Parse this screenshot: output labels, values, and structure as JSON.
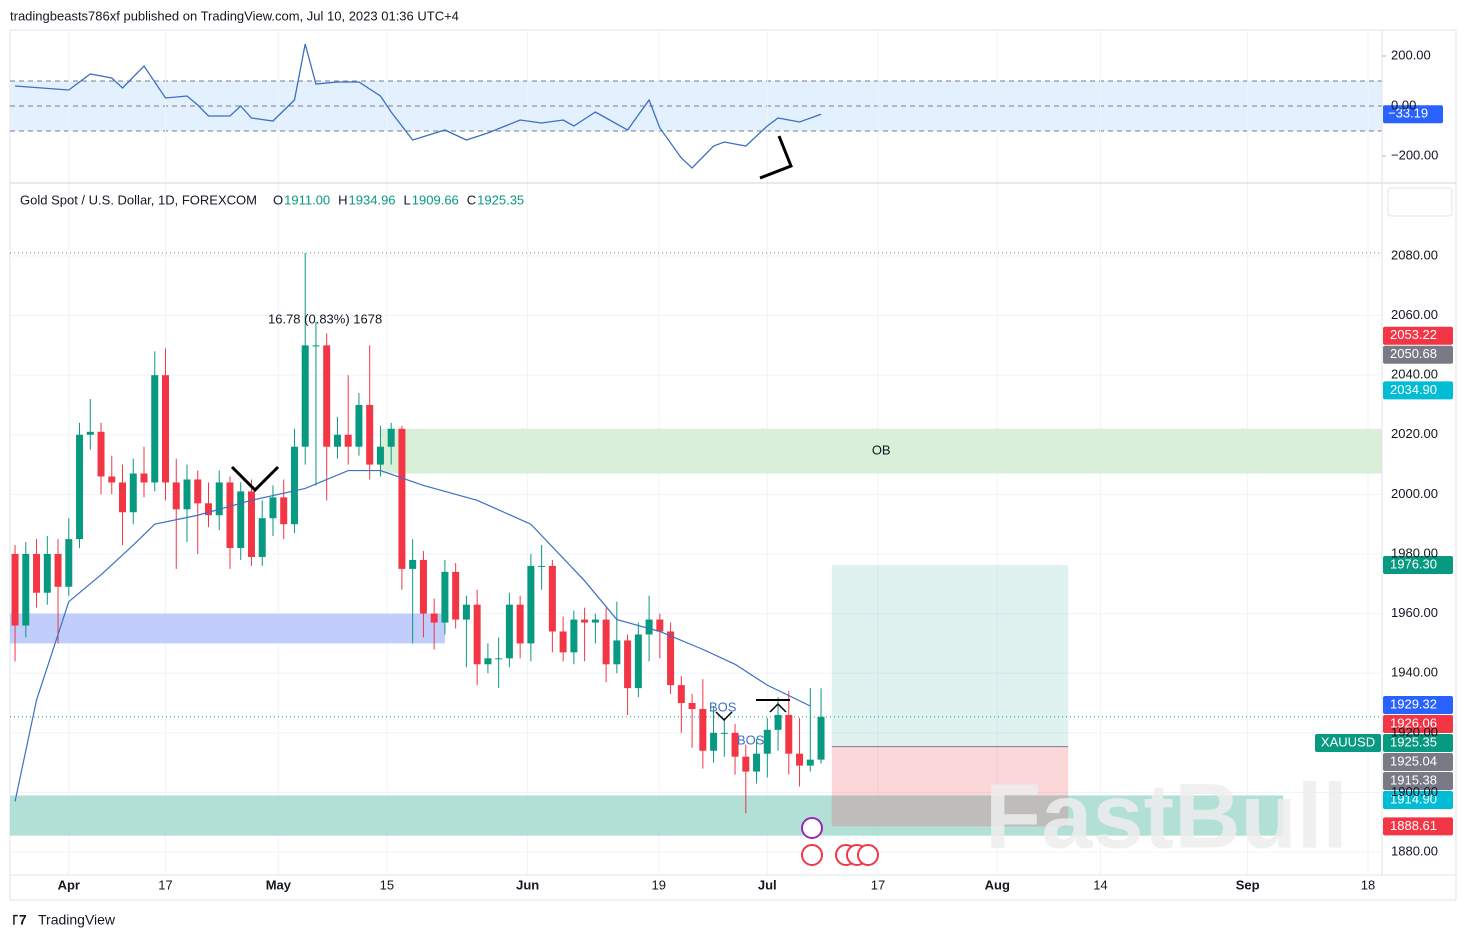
{
  "header": {
    "publisher": "tradingbeasts786xf published on TradingView.com, Jul 10, 2023 01:36 UTC+4",
    "footer": "TradingView",
    "watermark": "FastBull"
  },
  "chart_data": [
    {
      "type": "line",
      "color": "#3d6fc4",
      "band_color": "#e3f0fd",
      "x": [
        0,
        5,
        7,
        9,
        10,
        12,
        14,
        16,
        17,
        18,
        20,
        21,
        22,
        24,
        26,
        27,
        28,
        30,
        32,
        34,
        35,
        37,
        40,
        42,
        44,
        47,
        49,
        51,
        52,
        54,
        55,
        57,
        59,
        60,
        62,
        63,
        65,
        66,
        68,
        70,
        71,
        73,
        75
      ],
      "values": [
        80,
        64,
        128,
        112,
        72,
        160,
        32,
        40,
        4,
        -40,
        -40,
        0,
        -48,
        -60,
        24,
        248,
        88,
        96,
        96,
        40,
        -24,
        -136,
        -96,
        -136,
        -108,
        -56,
        -68,
        -56,
        -80,
        -24,
        -48,
        -96,
        24,
        -88,
        -208,
        -248,
        -160,
        -144,
        -160,
        -80,
        -48,
        -64,
        -33.19
      ],
      "xlim": [
        -0.47,
        127.2
      ],
      "ylim": [
        -304,
        304
      ],
      "yticks": [
        {
          "value": 200,
          "label": "200.00"
        },
        {
          "value": 0,
          "label": "0.00"
        },
        {
          "value": -200,
          "label": "−200.00"
        }
      ],
      "levels": [
        100,
        0,
        -100
      ],
      "last": {
        "value": -33.19,
        "label": "−33.19",
        "color": "#2962ff"
      }
    },
    {
      "type": "candlestick",
      "title": "Gold Spot / U.S. Dollar, 1D, FOREXCOM",
      "legend": [
        {
          "key": "O",
          "label": "1911.00"
        },
        {
          "key": "H",
          "label": "1934.96"
        },
        {
          "key": "L",
          "label": "1909.66"
        },
        {
          "key": "C",
          "label": "1925.35"
        }
      ],
      "series": [
        {
          "up_color": "#089981",
          "down_color": "#f23645",
          "open": [
            1980,
            1956,
            1980,
            1967,
            1980,
            1969,
            1985,
            2020,
            2021,
            2006,
            2004,
            1994,
            2007,
            2004,
            2040,
            2004,
            1995,
            2005,
            1997,
            1993,
            2004,
            1982,
            2001,
            1979,
            1992,
            1999,
            1990,
            2016,
            2050,
            2050,
            2016,
            2020,
            2016,
            2030,
            2010,
            2016,
            2022,
            1975,
            1978,
            1960,
            1957,
            1974,
            1958,
            1963,
            1943,
            1945,
            1945,
            1963,
            1950,
            1976,
            1976,
            1954,
            1947,
            1958,
            1957,
            1958,
            1943,
            1951,
            1935,
            1953,
            1958,
            1954,
            1936,
            1930,
            1928,
            1914,
            1920,
            1920,
            1912,
            1907,
            1913,
            1921,
            1926,
            1913,
            1909,
            1911
          ],
          "high": [
            1983,
            1984,
            1985,
            1986,
            1985,
            1992,
            2024,
            2032,
            2024,
            2013,
            2010,
            2012,
            2016,
            2048,
            2049,
            2012,
            2010,
            2008,
            2004,
            2008,
            2006,
            2004,
            2005,
            1998,
            2003,
            2005,
            2022,
            2081,
            2058,
            2054,
            2026,
            2040,
            2034,
            2050,
            2023,
            2024,
            2023,
            1985,
            1981,
            1965,
            1978,
            1977,
            1966,
            1968,
            1950,
            1952,
            1967,
            1966,
            1980,
            1983,
            1978,
            1959,
            1961,
            1962,
            1960,
            1962,
            1964,
            1953,
            1957,
            1966,
            1960,
            1957,
            1939,
            1933,
            1938,
            1929,
            1925,
            1923,
            1916,
            1918,
            1925,
            1932,
            1934,
            1925,
            1935,
            1934.96
          ],
          "low": [
            1944,
            1952,
            1962,
            1963,
            1950,
            1966,
            1982,
            2015,
            2000,
            2000,
            1983,
            1990,
            1999,
            2001,
            1998,
            1975,
            1984,
            1980,
            1989,
            1988,
            1975,
            1978,
            1976,
            1976,
            1986,
            1985,
            1987,
            2010,
            2003,
            1998,
            2012,
            2010,
            2013,
            2005,
            2006,
            2010,
            1968,
            1950,
            1952,
            1948,
            1953,
            1955,
            1942,
            1936,
            1940,
            1935,
            1942,
            1945,
            1944,
            1968,
            1947,
            1944,
            1943,
            1944,
            1950,
            1937,
            1940,
            1926,
            1932,
            1944,
            1945,
            1933,
            1920,
            1915,
            1908,
            1910,
            1912,
            1906,
            1893,
            1903,
            1905,
            1914,
            1906,
            1902,
            1907,
            1909.66
          ],
          "close": [
            1956,
            1980,
            1967,
            1980,
            1969,
            1985,
            2020,
            2021,
            2006,
            2004,
            1994,
            2007,
            2004,
            2040,
            2004,
            1995,
            2005,
            1997,
            1993,
            2004,
            1982,
            2001,
            1979,
            1992,
            1999,
            1990,
            2016,
            2050,
            2050,
            2016,
            2020,
            2016,
            2030,
            2010,
            2016,
            2022,
            1975,
            1978,
            1960,
            1957,
            1974,
            1958,
            1963,
            1943,
            1945,
            1945,
            1963,
            1950,
            1976,
            1976,
            1954,
            1947,
            1958,
            1957,
            1958,
            1943,
            1951,
            1935,
            1953,
            1958,
            1954,
            1936,
            1930,
            1928,
            1914,
            1920,
            1920,
            1912,
            1907,
            1913,
            1921,
            1926,
            1913,
            1909,
            1911,
            1925.35
          ]
        }
      ],
      "ma": {
        "color": "#3d6fc4",
        "x": [
          0,
          2,
          5,
          8,
          11,
          13,
          17,
          22,
          27,
          31,
          34,
          38,
          43,
          48,
          53,
          56,
          60,
          64,
          67,
          70,
          74
        ],
        "values": [
          1897,
          1931,
          1964,
          1973,
          1983,
          1990,
          1993,
          1998,
          2002,
          2008,
          2008,
          2003,
          1998,
          1990,
          1971,
          1958,
          1954,
          1948,
          1943,
          1936,
          1929
        ]
      },
      "xlim": [
        -0.47,
        127.2
      ],
      "ylim": [
        1872.3,
        2103.8
      ],
      "yticks": [
        {
          "value": 1880,
          "label": "1880.00"
        },
        {
          "value": 1900,
          "label": "1900.00"
        },
        {
          "value": 1920,
          "label": "1920.00"
        },
        {
          "value": 1940,
          "label": "1940.00"
        },
        {
          "value": 1960,
          "label": "1960.00"
        },
        {
          "value": 1980,
          "label": "1980.00"
        },
        {
          "value": 2000,
          "label": "2000.00"
        },
        {
          "value": 2020,
          "label": "2020.00"
        },
        {
          "value": 2040,
          "label": "2040.00"
        },
        {
          "value": 2060,
          "label": "2060.00"
        },
        {
          "value": 2080,
          "label": "2080.00"
        }
      ],
      "xticks": [
        {
          "value": 5,
          "label": "Apr"
        },
        {
          "value": 14,
          "label": "17"
        },
        {
          "value": 24.5,
          "label": "May"
        },
        {
          "value": 34.6,
          "label": "15"
        },
        {
          "value": 47.7,
          "label": "Jun"
        },
        {
          "value": 59.9,
          "label": "19"
        },
        {
          "value": 70,
          "label": "Jul"
        },
        {
          "value": 80.3,
          "label": "17"
        },
        {
          "value": 91.4,
          "label": "Aug"
        },
        {
          "value": 101,
          "label": "14"
        },
        {
          "value": 114.7,
          "label": "Sep"
        },
        {
          "value": 125.9,
          "label": "18"
        }
      ],
      "price_tags": [
        {
          "value": 2053.22,
          "label": "2053.22",
          "color": "#f23645"
        },
        {
          "value": 2050.68,
          "label": "2050.68",
          "color": "#787b86"
        },
        {
          "value": 2034.9,
          "label": "2034.90",
          "color": "#00bcd4"
        },
        {
          "value": 1976.3,
          "label": "1976.30",
          "color": "#089981"
        },
        {
          "value": 1929.32,
          "label": "1929.32",
          "color": "#2962ff"
        },
        {
          "value": 1926.06,
          "label": "1926.06",
          "color": "#f23645"
        },
        {
          "value": 1925.35,
          "label": "1925.35",
          "color": "#089981",
          "name": "XAUUSD"
        },
        {
          "value": 1925.04,
          "label": "1925.04",
          "color": "#787b86"
        },
        {
          "value": 1915.38,
          "label": "1915.38",
          "color": "#787b86"
        },
        {
          "value": 1914.9,
          "label": "1914.90",
          "color": "#00bcd4"
        },
        {
          "value": 1888.61,
          "label": "1888.61",
          "color": "#f23645"
        }
      ],
      "zones": [
        {
          "label": "OB",
          "from": 2007,
          "to": 2022,
          "start": 34,
          "color": "#d4ecd0"
        },
        {
          "from": 1950,
          "to": 1960,
          "start": -0.47,
          "end": 40,
          "color": "#b6c6fb"
        },
        {
          "from": 1885.5,
          "to": 1899,
          "start": -0.47,
          "end": 118,
          "color": "#a5d9cf"
        }
      ],
      "position": {
        "x": [
          76,
          98
        ],
        "target": 1976.3,
        "entry": 1915.38,
        "stop": 1888.61
      },
      "annotations": [
        "16.78 (0.83%) 1678",
        "BOS",
        "BOS"
      ]
    }
  ]
}
